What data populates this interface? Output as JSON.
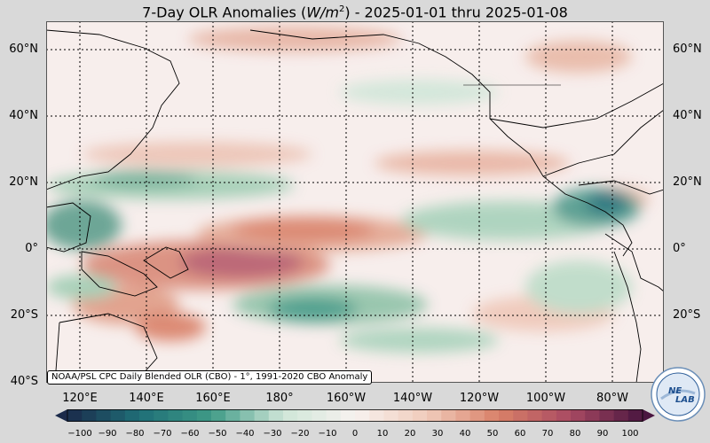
{
  "title": {
    "prefix": "7-Day OLR Anomalies (",
    "unit_italic": "W/m",
    "unit_sup": "2",
    "suffix": ") - 2025-01-01 thru 2025-01-08"
  },
  "lat_labels": [
    "60°N",
    "40°N",
    "20°N",
    "0°",
    "20°S",
    "40°S"
  ],
  "lon_labels": [
    "120°E",
    "140°E",
    "160°E",
    "180°",
    "160°W",
    "140°W",
    "120°W",
    "100°W",
    "80°W"
  ],
  "credit": "NOAA/PSL CPC Daily Blended OLR (CBO) - 1°, 1991-2020 CBO Anomaly",
  "colorbar": {
    "ticks": [
      "−100",
      "−90",
      "−80",
      "−70",
      "−60",
      "−50",
      "−40",
      "−30",
      "−20",
      "−10",
      "0",
      "10",
      "20",
      "30",
      "40",
      "50",
      "60",
      "70",
      "80",
      "90",
      "100"
    ],
    "colors": {
      "negative_extreme": "#1b2a4a",
      "negative_strong": "#1f6f78",
      "negative_mid": "#3f9a86",
      "negative_weak": "#cfe6d8",
      "neutral": "#f7f2ef",
      "positive_weak": "#f0cbbb",
      "positive_mid": "#d98068",
      "positive_strong": "#a84a62",
      "positive_extreme": "#4a1640"
    }
  },
  "logo": {
    "text_ne": "NE",
    "text_lab": "LAB"
  }
}
